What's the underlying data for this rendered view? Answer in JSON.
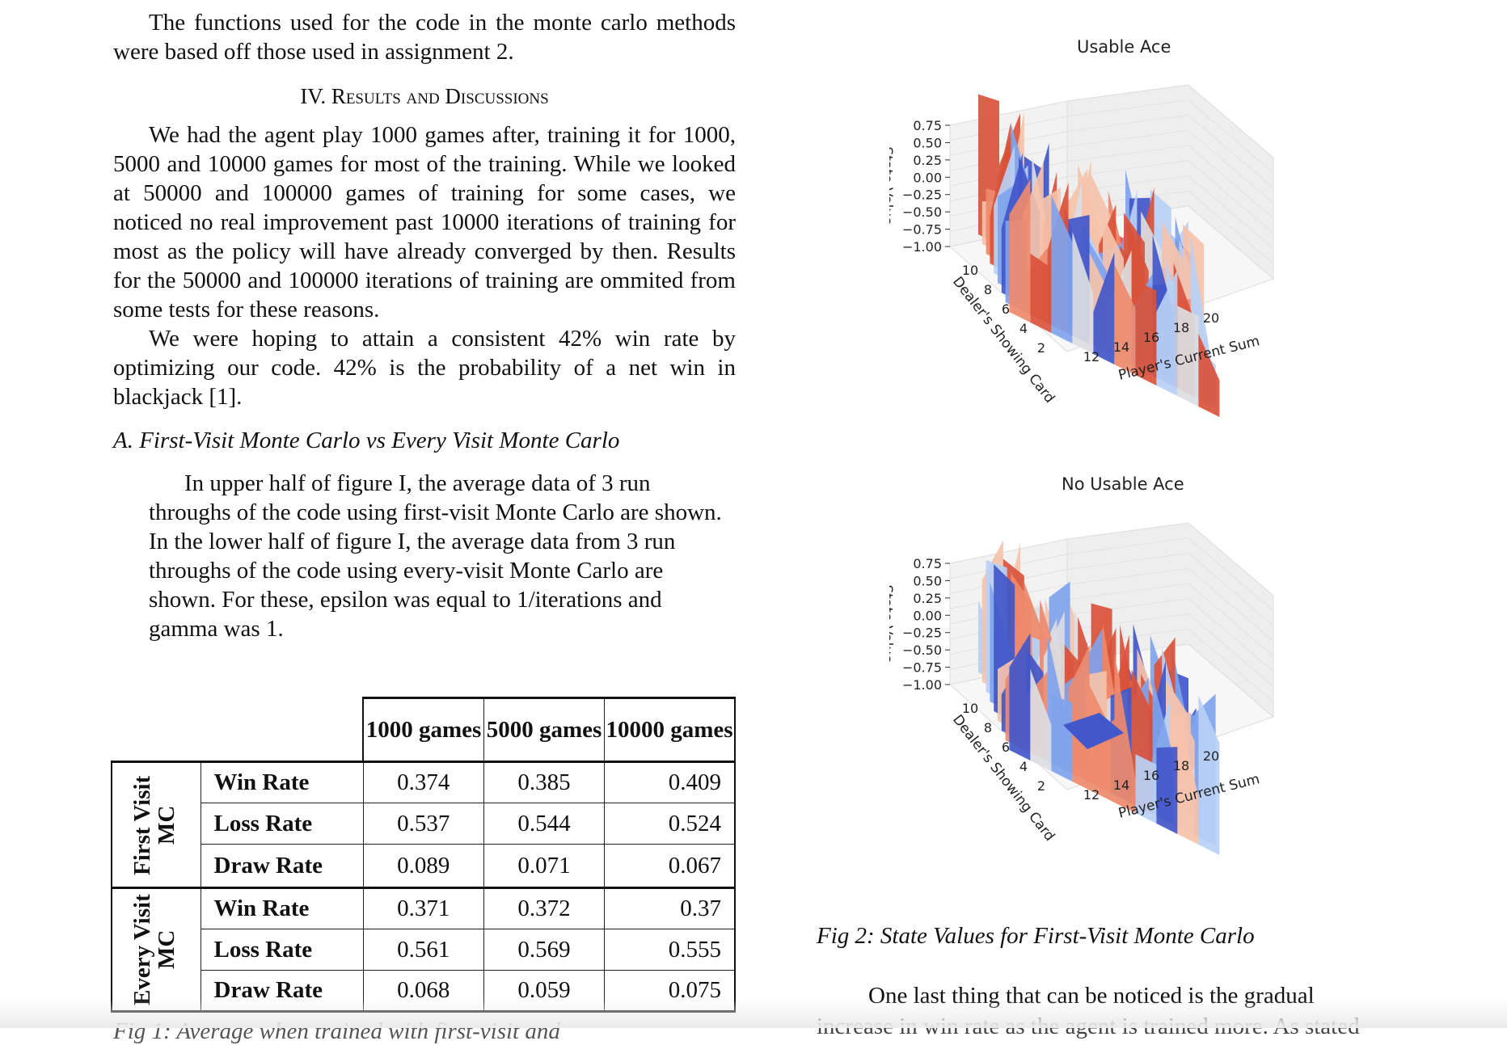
{
  "left": {
    "intro": "The functions used for the code in the monte carlo methods were based off those used in assignment 2.",
    "section_heading": "IV. Results and Discussions",
    "para1": "We had the agent play 1000 games after, training it for 1000, 5000 and 10000 games for most of the training. While we looked at 50000 and 100000 games of training for some cases, we noticed no real improvement past 10000 iterations of training for most as the policy will have already converged by then. Results for the 50000 and 100000 iterations of training are ommited from some tests for these reasons.",
    "para2": "We were hoping to attain a consistent 42% win rate by optimizing our code. 42% is the probability of a net win in blackjack [1].",
    "subheading": "A. First-Visit Monte Carlo vs Every Visit Monte Carlo",
    "para3": "In upper half of figure I, the average data of 3 run throughs of the code using first-visit Monte Carlo are shown. In the lower half of figure I, the average data from 3 run throughs of the code using every-visit Monte Carlo are shown. For these, epsilon was equal to 1/iterations and gamma was 1.",
    "cut_caption": "Fig 1: Average                                      when trained with first-visit and"
  },
  "table": {
    "columns": [
      "1000 games",
      "5000 games",
      "10000 games"
    ],
    "groups": [
      {
        "label": "First Visit MC",
        "rows": [
          {
            "label": "Win Rate",
            "values": [
              "0.374",
              "0.385",
              "0.409"
            ]
          },
          {
            "label": "Loss Rate",
            "values": [
              "0.537",
              "0.544",
              "0.524"
            ]
          },
          {
            "label": "Draw Rate",
            "values": [
              "0.089",
              "0.071",
              "0.067"
            ]
          }
        ]
      },
      {
        "label": "Every Visit MC",
        "rows": [
          {
            "label": "Win Rate",
            "values": [
              "0.371",
              "0.372",
              "0.37"
            ]
          },
          {
            "label": "Loss Rate",
            "values": [
              "0.561",
              "0.569",
              "0.555"
            ]
          },
          {
            "label": "Draw Rate",
            "values": [
              "0.068",
              "0.059",
              "0.075"
            ]
          }
        ]
      }
    ]
  },
  "chart_data": [
    {
      "type": "surface",
      "title": "Usable Ace",
      "zlabel": "State Value",
      "ylabel": "Dealer's Showing Card",
      "xlabel": "Player's Current Sum",
      "z_ticks": [
        "0.75",
        "0.50",
        "0.25",
        "0.00",
        "−0.25",
        "−0.50",
        "−0.75",
        "−1.00"
      ],
      "y_ticks": [
        "10",
        "8",
        "6",
        "4",
        "2"
      ],
      "x_ticks": [
        "12",
        "14",
        "16",
        "18",
        "20"
      ],
      "zlim": [
        -1.0,
        0.75
      ],
      "colormap": "coolwarm"
    },
    {
      "type": "surface",
      "title": "No Usable Ace",
      "zlabel": "State Value",
      "ylabel": "Dealer's Showing Card",
      "xlabel": "Player's Current Sum",
      "z_ticks": [
        "0.75",
        "0.50",
        "0.25",
        "0.00",
        "−0.25",
        "−0.50",
        "−0.75",
        "−1.00"
      ],
      "y_ticks": [
        "10",
        "8",
        "6",
        "4",
        "2"
      ],
      "x_ticks": [
        "12",
        "14",
        "16",
        "18",
        "20"
      ],
      "zlim": [
        -1.0,
        0.75
      ],
      "colormap": "coolwarm"
    }
  ],
  "right": {
    "fig2_caption": "Fig 2: State Values for First-Visit Monte Carlo",
    "last_para": "One last thing that can be noticed is the gradual",
    "cut_line": "increase in win rate as the agent is trained more. As stated"
  },
  "colors": {
    "warm_dark": "#d9533b",
    "warm_mid": "#ee8a6c",
    "warm_light": "#f5c2aa",
    "neutral": "#dcdde2",
    "cool_light": "#b9d0f5",
    "cool_mid": "#7fa3ec",
    "cool_dark": "#4257c9"
  }
}
